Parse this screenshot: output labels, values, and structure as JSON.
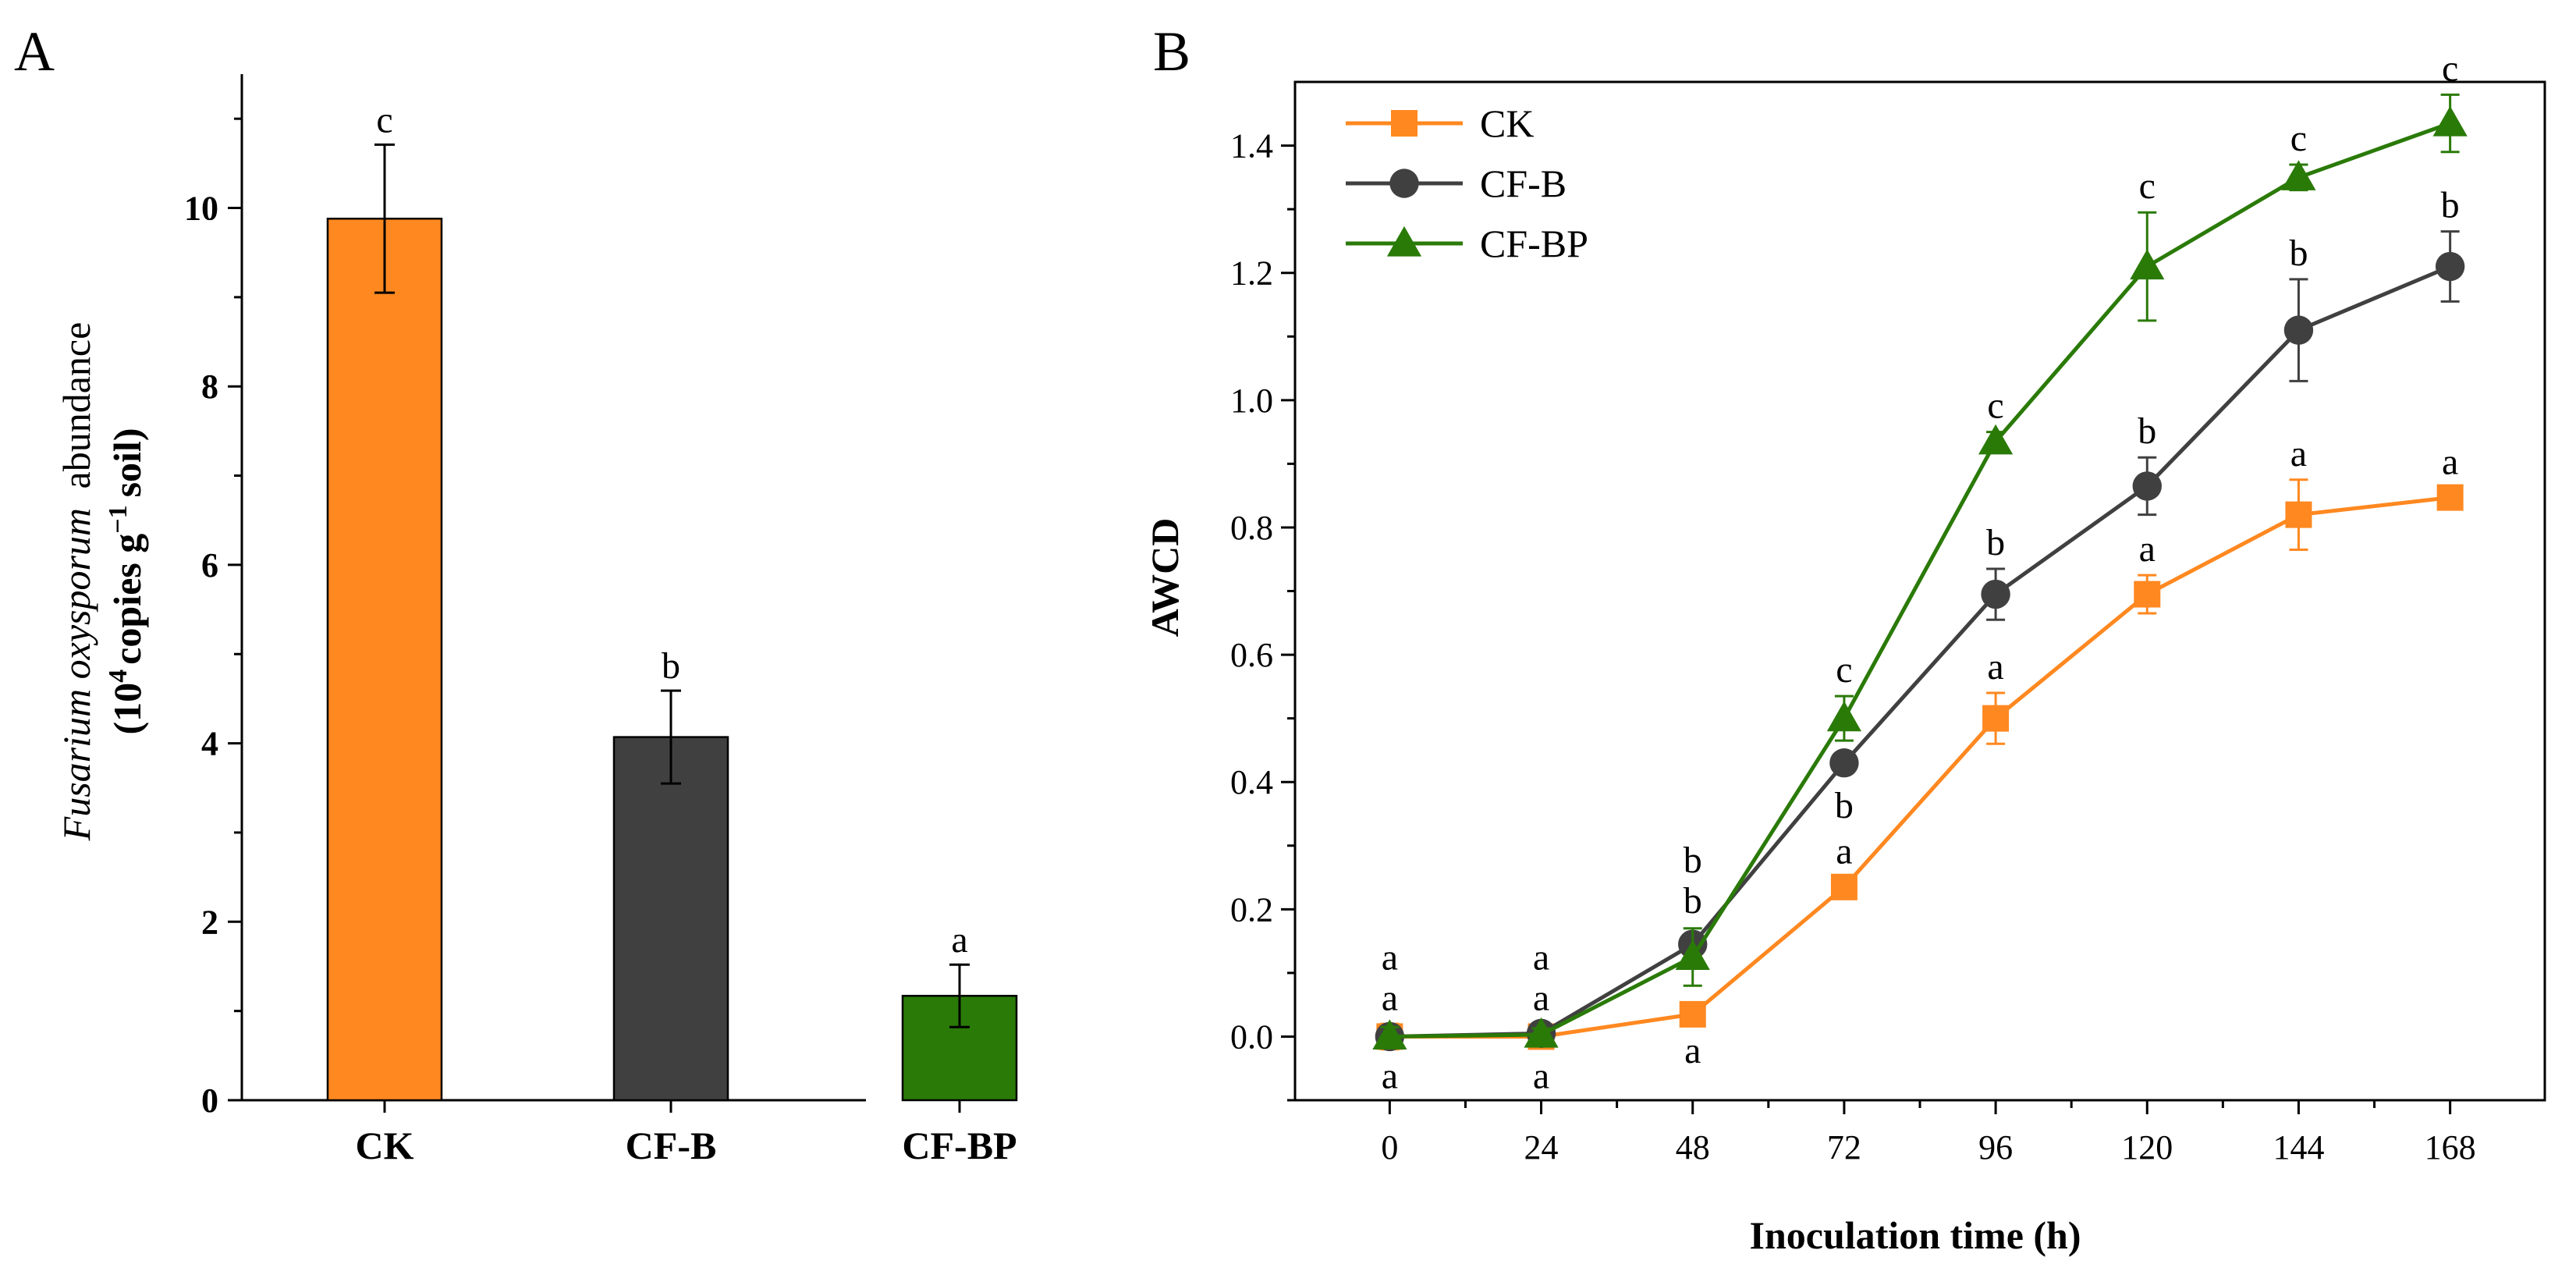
{
  "figure": {
    "panel_a_label": "A",
    "panel_b_label": "B"
  },
  "chart_data": [
    {
      "type": "bar",
      "panel": "A",
      "title": "",
      "ylabel_parts": {
        "species": "Fusarium oxysporum",
        "word": "abundance",
        "open": "(10",
        "exp1": "4",
        "mid": "copies g",
        "exp2": "−1",
        "close": "soil)"
      },
      "xlabel": "",
      "ylim": [
        0,
        11.5
      ],
      "yticks": [
        0,
        2,
        4,
        6,
        8,
        10
      ],
      "categories": [
        "CK",
        "CF-B",
        "CF-BP"
      ],
      "values": [
        9.88,
        4.07,
        1.17
      ],
      "errors": [
        0.83,
        0.52,
        0.35
      ],
      "significance": [
        "c",
        "b",
        "a"
      ],
      "colors": [
        "#FF8820",
        "#404040",
        "#2A7A08"
      ]
    },
    {
      "type": "line",
      "panel": "B",
      "title": "",
      "xlabel": "Inoculation time (h)",
      "ylabel": "AWCD",
      "xlim": [
        -15,
        183
      ],
      "ylim": [
        -0.1,
        1.5
      ],
      "x": [
        0,
        24,
        48,
        72,
        96,
        120,
        144,
        168
      ],
      "yticks": [
        "0.0",
        "0.2",
        "0.4",
        "0.6",
        "0.8",
        "1.0",
        "1.2",
        "1.4"
      ],
      "legend_position": "top-left",
      "series": [
        {
          "name": "CK",
          "marker": "square",
          "color": "#FF8820",
          "values": [
            0.0,
            0.0,
            0.035,
            0.235,
            0.5,
            0.695,
            0.82,
            0.847
          ],
          "errors": [
            0.02,
            0.01,
            0.015,
            0.015,
            0.04,
            0.03,
            0.055,
            0.015
          ],
          "letters": [
            "a",
            "a",
            "a",
            "a",
            "a",
            "a",
            "a",
            "a"
          ]
        },
        {
          "name": "CF-B",
          "marker": "circle",
          "color": "#404040",
          "values": [
            0.0,
            0.005,
            0.145,
            0.43,
            0.695,
            0.865,
            1.11,
            1.21
          ],
          "errors": [
            0.015,
            0.01,
            0.015,
            0.015,
            0.04,
            0.045,
            0.08,
            0.055
          ],
          "letters": [
            "a",
            "a",
            "b",
            "b",
            "b",
            "b",
            "b",
            "b"
          ]
        },
        {
          "name": "CF-BP",
          "marker": "triangle",
          "color": "#2A7A08",
          "values": [
            0.0,
            0.003,
            0.125,
            0.5,
            0.935,
            1.21,
            1.35,
            1.435
          ],
          "errors": [
            0.015,
            0.01,
            0.045,
            0.035,
            0.015,
            0.085,
            0.02,
            0.045
          ],
          "letters": [
            "a",
            "a",
            "b",
            "c",
            "c",
            "c",
            "c",
            "c"
          ]
        }
      ]
    }
  ]
}
